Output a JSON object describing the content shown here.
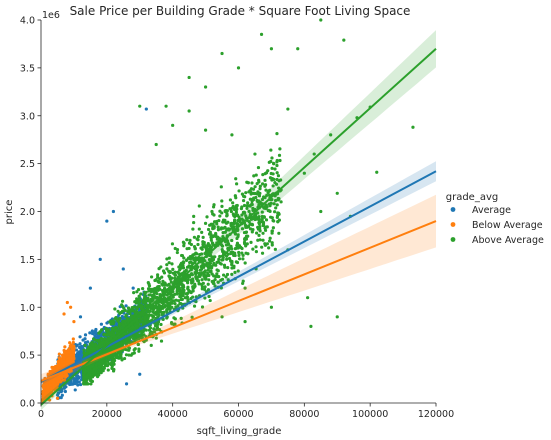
{
  "chart_data": {
    "type": "scatter",
    "title": "Sale Price per Building Grade * Square Foot Living Space",
    "xlabel": "sqft_living_grade",
    "ylabel": "price",
    "y_offset_label": "1e6",
    "xlim": [
      0,
      120000
    ],
    "ylim": [
      0,
      4.0
    ],
    "x_ticks": [
      0,
      20000,
      40000,
      60000,
      80000,
      100000,
      120000
    ],
    "x_tick_labels": [
      "0",
      "20000",
      "40000",
      "60000",
      "80000",
      "100000",
      "120000"
    ],
    "y_ticks": [
      0.0,
      0.5,
      1.0,
      1.5,
      2.0,
      2.5,
      3.0,
      3.5,
      4.0
    ],
    "y_tick_labels": [
      "0.0",
      "0.5",
      "1.0",
      "1.5",
      "2.0",
      "2.5",
      "3.0",
      "3.5",
      "4.0"
    ],
    "grid": false,
    "legend": {
      "title": "grade_avg",
      "placement": "right"
    },
    "series": [
      {
        "name": "Average",
        "color": "#1f77b4",
        "cluster": {
          "x_range": [
            5000,
            30000
          ],
          "y_range": [
            0.1,
            1.6
          ]
        },
        "points": [
          [
            3000,
            0.25
          ],
          [
            10000,
            0.6
          ],
          [
            15000,
            1.2
          ],
          [
            18000,
            1.5
          ],
          [
            20000,
            1.9
          ],
          [
            22000,
            2.0
          ],
          [
            25000,
            1.4
          ],
          [
            28000,
            1.2
          ],
          [
            30000,
            1.1
          ],
          [
            32000,
            3.07
          ],
          [
            12000,
            0.9
          ],
          [
            26000,
            0.2
          ],
          [
            30000,
            0.3
          ]
        ],
        "regression": {
          "x": [
            0,
            120000
          ],
          "y": [
            0.22,
            2.42
          ],
          "ci_halfwidth_at_end": 0.09
        }
      },
      {
        "name": "Below Average",
        "color": "#ff7f0e",
        "cluster": {
          "x_range": [
            0,
            10000
          ],
          "y_range": [
            0.0,
            1.0
          ]
        },
        "points": [
          [
            8000,
            1.05
          ],
          [
            9000,
            1.0
          ],
          [
            7000,
            0.93
          ],
          [
            10000,
            0.85
          ],
          [
            5000,
            0.05
          ],
          [
            3000,
            0.1
          ]
        ],
        "regression": {
          "x": [
            0,
            120000
          ],
          "y": [
            0.23,
            1.9
          ],
          "ci_halfwidth_at_end": 0.26
        }
      },
      {
        "name": "Above Average",
        "color": "#2ca02c",
        "cluster": {
          "x_range": [
            10000,
            70000
          ],
          "y_range": [
            0.2,
            3.8
          ]
        },
        "points": [
          [
            67000,
            3.85
          ],
          [
            85000,
            4.0
          ],
          [
            92000,
            3.79
          ],
          [
            78000,
            3.7
          ],
          [
            70000,
            3.7
          ],
          [
            55000,
            3.65
          ],
          [
            60000,
            3.5
          ],
          [
            45000,
            3.4
          ],
          [
            50000,
            3.3
          ],
          [
            75000,
            3.07
          ],
          [
            100000,
            3.09
          ],
          [
            113000,
            2.88
          ],
          [
            88000,
            2.8
          ],
          [
            96000,
            2.98
          ],
          [
            83000,
            2.6
          ],
          [
            102000,
            2.41
          ],
          [
            90000,
            2.19
          ],
          [
            94000,
            1.95
          ],
          [
            80000,
            2.4
          ],
          [
            65000,
            2.6
          ],
          [
            58000,
            2.8
          ],
          [
            50000,
            2.85
          ],
          [
            40000,
            2.9
          ],
          [
            38000,
            3.1
          ],
          [
            30000,
            3.1
          ],
          [
            35000,
            2.7
          ],
          [
            45000,
            3.05
          ],
          [
            85000,
            2.0
          ],
          [
            82000,
            0.8
          ],
          [
            90000,
            0.9
          ],
          [
            81000,
            1.1
          ],
          [
            75000,
            1.6
          ],
          [
            70000,
            1.0
          ],
          [
            62000,
            1.2
          ],
          [
            63000,
            2.3
          ],
          [
            56000,
            2.0
          ],
          [
            62000,
            0.85
          ],
          [
            55000,
            0.9
          ]
        ],
        "regression": {
          "x": [
            0,
            120000
          ],
          "y": [
            -0.02,
            3.7
          ],
          "ci_halfwidth_at_end": 0.18
        }
      }
    ]
  }
}
